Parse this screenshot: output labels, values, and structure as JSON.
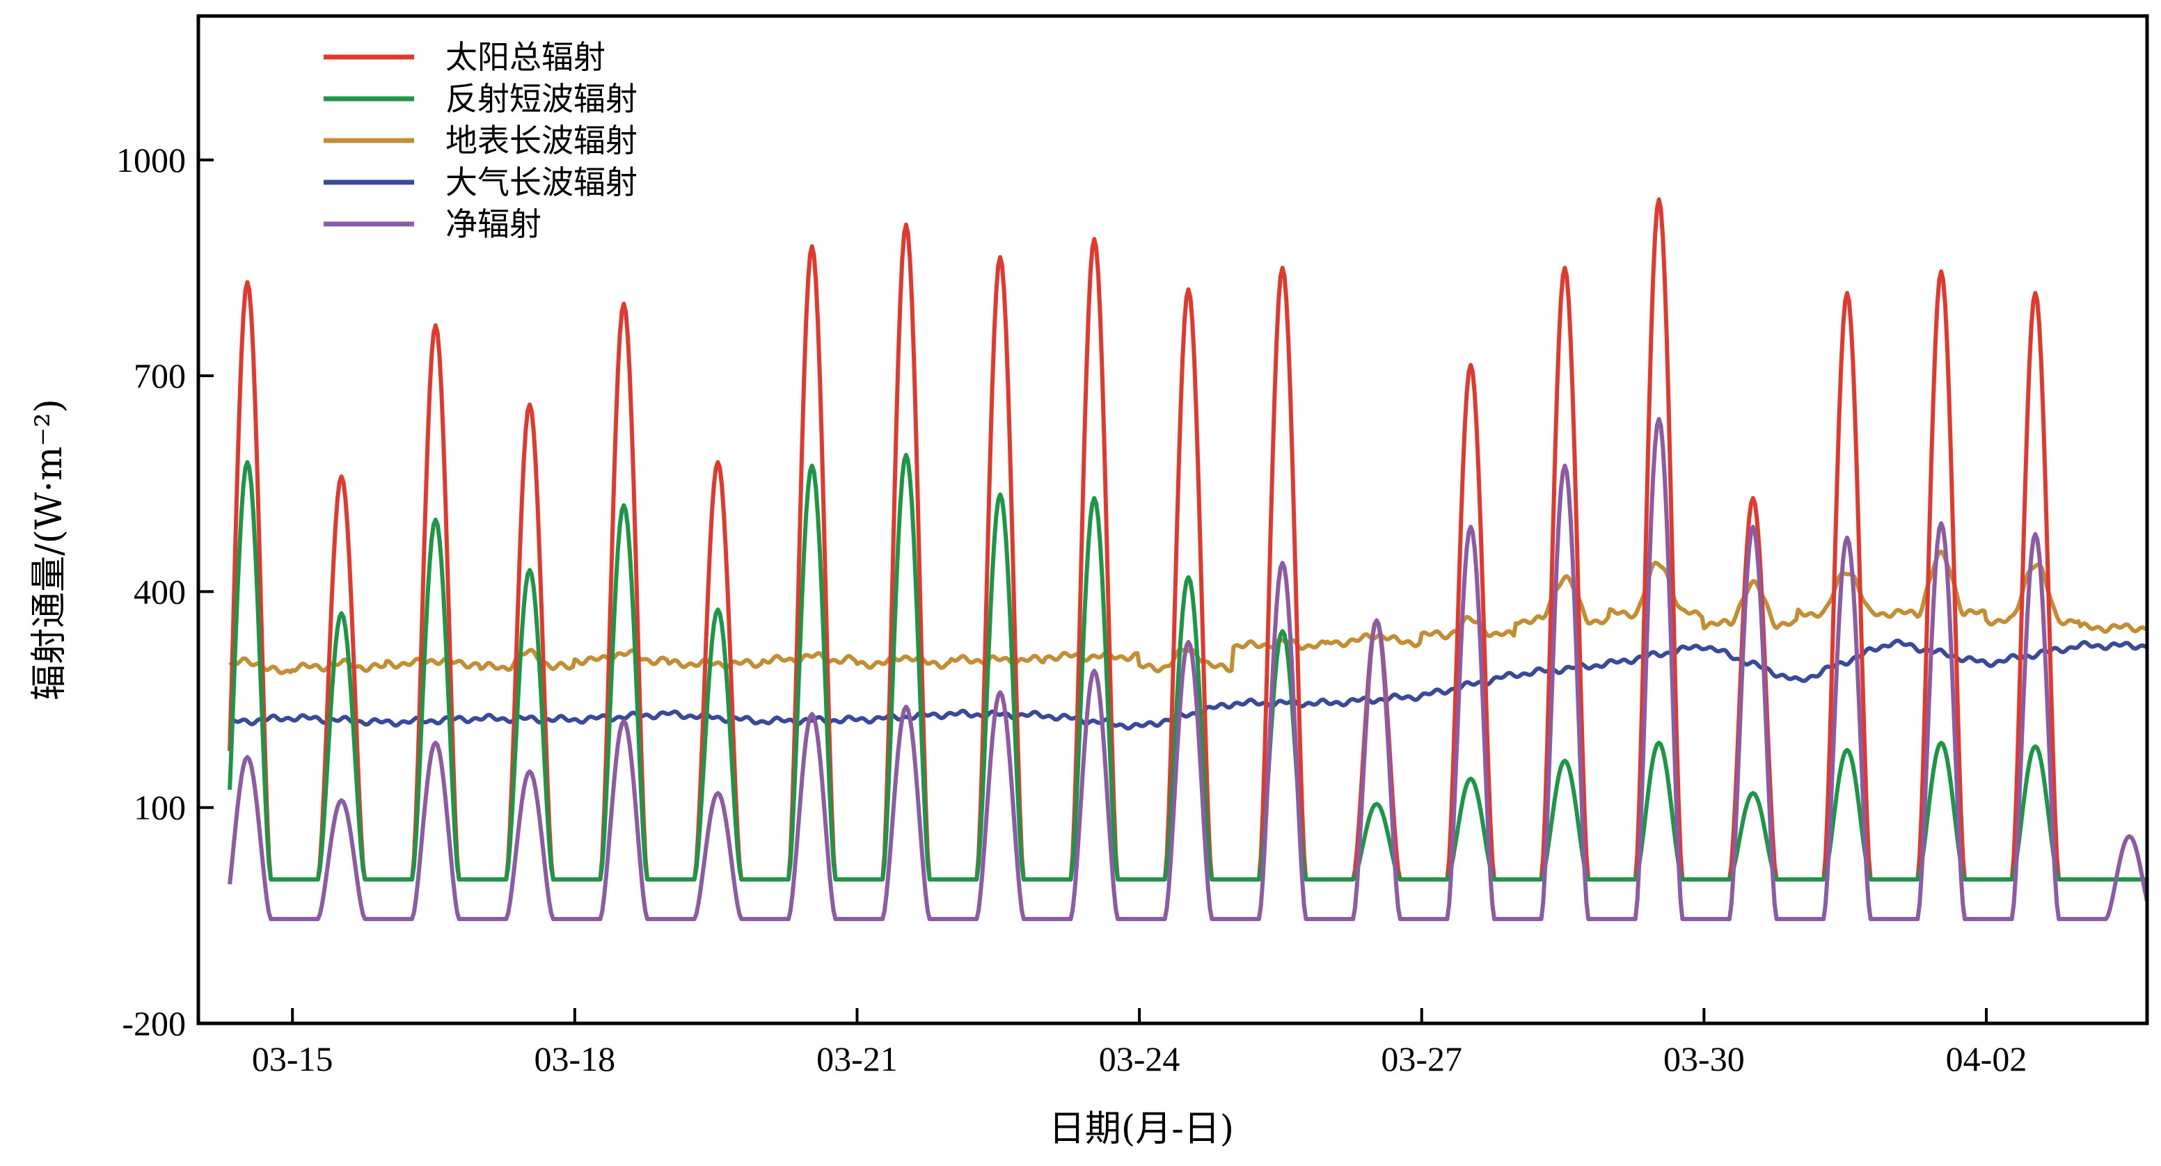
{
  "chart_data": {
    "type": "line",
    "title": "",
    "xlabel": "日期(月-日)",
    "ylabel": "辐射通量/(W·m⁻²)",
    "ylim": [
      -200,
      1200
    ],
    "yticks": [
      -200,
      100,
      400,
      700,
      1000
    ],
    "xlim": [
      "2025-03-14T00:00",
      "2025-04-03T17:00"
    ],
    "xticks": [
      "03-15",
      "03-18",
      "03-21",
      "03-24",
      "03-27",
      "03-30",
      "04-02"
    ],
    "xtick_dates": [
      "2025-03-15",
      "2025-03-18",
      "2025-03-21",
      "2025-03-24",
      "2025-03-27",
      "2025-03-30",
      "2025-04-02"
    ],
    "grid": false,
    "legend_position": "top-left",
    "x_dates": [
      "2025-03-14",
      "2025-03-15",
      "2025-03-16",
      "2025-03-17",
      "2025-03-18",
      "2025-03-19",
      "2025-03-20",
      "2025-03-21",
      "2025-03-22",
      "2025-03-23",
      "2025-03-24",
      "2025-03-25",
      "2025-03-26",
      "2025-03-27",
      "2025-03-28",
      "2025-03-29",
      "2025-03-30",
      "2025-03-31",
      "2025-04-01",
      "2025-04-02",
      "2025-04-03"
    ],
    "series": [
      {
        "name": "太阳总辐射",
        "color": "#e03a2f",
        "daily_max": [
          830,
          560,
          770,
          660,
          800,
          580,
          880,
          910,
          865,
          890,
          820,
          850,
          360,
          715,
          850,
          945,
          530,
          815,
          845,
          815,
          0
        ],
        "night_value": 0
      },
      {
        "name": "反射短波辐射",
        "color": "#1e9648",
        "daily_max": [
          580,
          370,
          500,
          430,
          520,
          375,
          575,
          590,
          535,
          530,
          420,
          345,
          105,
          140,
          165,
          190,
          120,
          180,
          190,
          185,
          0
        ],
        "night_value": 0
      },
      {
        "name": "地表长波辐射",
        "color": "#c38d33",
        "night": [
          290,
          295,
          300,
          295,
          305,
          300,
          305,
          300,
          305,
          310,
          295,
          325,
          330,
          340,
          360,
          370,
          355,
          370,
          370,
          360,
          350
        ],
        "day_peak": [
          305,
          300,
          305,
          315,
          315,
          300,
          310,
          310,
          305,
          310,
          320,
          330,
          340,
          360,
          420,
          440,
          410,
          430,
          450,
          440,
          350
        ]
      },
      {
        "name": "大气长波辐射",
        "color": "#3a4a9a",
        "values": [
          215,
          225,
          218,
          224,
          222,
          230,
          220,
          222,
          230,
          228,
          212,
          245,
          245,
          255,
          285,
          300,
          325,
          275,
          330,
          300,
          325
        ]
      },
      {
        "name": "净辐射",
        "color": "#8c5ba3",
        "daily_max": [
          170,
          110,
          190,
          150,
          220,
          120,
          230,
          240,
          260,
          290,
          330,
          440,
          360,
          490,
          575,
          640,
          490,
          475,
          495,
          480,
          60
        ],
        "night_value": -55
      }
    ]
  },
  "legend": {
    "items": [
      {
        "label": "太阳总辐射",
        "color": "#e03a2f"
      },
      {
        "label": "反射短波辐射",
        "color": "#1e9648"
      },
      {
        "label": "地表长波辐射",
        "color": "#c38d33"
      },
      {
        "label": "大气长波辐射",
        "color": "#3a4a9a"
      },
      {
        "label": "净辐射",
        "color": "#8c5ba3"
      }
    ]
  }
}
